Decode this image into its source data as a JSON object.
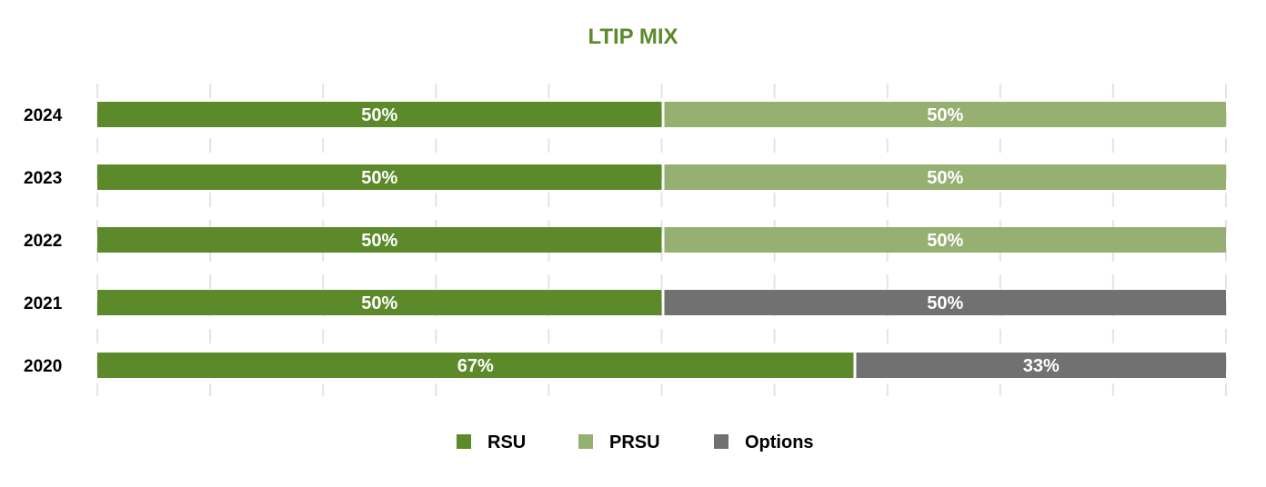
{
  "chart_data": {
    "type": "bar",
    "orientation": "horizontal",
    "stacked": true,
    "title": "LTIP MIX",
    "categories": [
      "2024",
      "2023",
      "2022",
      "2021",
      "2020"
    ],
    "series": [
      {
        "name": "RSU",
        "color": "#5c8a2a",
        "values": [
          50,
          50,
          50,
          50,
          67
        ]
      },
      {
        "name": "PRSU",
        "color": "#96b072",
        "values": [
          50,
          50,
          50,
          0,
          0
        ]
      },
      {
        "name": "Options",
        "color": "#717171",
        "values": [
          0,
          0,
          0,
          50,
          33
        ]
      }
    ],
    "xlim": [
      0,
      100
    ],
    "value_suffix": "%",
    "grid": true,
    "legend": "bottom-center"
  },
  "colors": {
    "title": "#5c8a2a",
    "grid": "#e4e4e4",
    "label": "#ffffff"
  }
}
